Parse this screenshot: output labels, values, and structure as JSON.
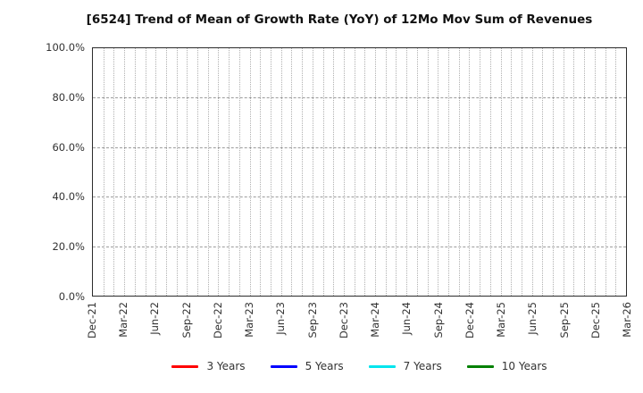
{
  "title": "[6524]  Trend of Mean of Growth Rate (YoY) of 12Mo Mov Sum of Revenues",
  "colors": {
    "axis_border": "#2b2b2b",
    "grid_vertical": "#b0b0b0",
    "grid_horizontal": "#9c9c9c",
    "tick_text": "#333333",
    "title_text": "#111111"
  },
  "chart_data": {
    "type": "line",
    "title": "[6524]  Trend of Mean of Growth Rate (YoY) of 12Mo Mov Sum of Revenues",
    "xlabel": "",
    "ylabel": "",
    "x_tick_labels": [
      "Dec-21",
      "Mar-22",
      "Jun-22",
      "Sep-22",
      "Dec-22",
      "Mar-23",
      "Jun-23",
      "Sep-23",
      "Dec-23",
      "Mar-24",
      "Jun-24",
      "Sep-24",
      "Dec-24",
      "Mar-25",
      "Jun-25",
      "Sep-25",
      "Dec-25",
      "Mar-26"
    ],
    "months_per_tick": 3,
    "y_tick_labels_top_to_bottom": [
      "100.0%",
      "80.0%",
      "60.0%",
      "40.0%",
      "20.0%",
      "0.0%"
    ],
    "y_ticks": [
      0,
      20,
      40,
      60,
      80,
      100
    ],
    "ylim": [
      0,
      100
    ],
    "grid": true,
    "legend_position": "bottom-center",
    "series": [
      {
        "name": "3 Years",
        "color": "#ff0000",
        "values": []
      },
      {
        "name": "5 Years",
        "color": "#0000ff",
        "values": []
      },
      {
        "name": "7 Years",
        "color": "#00e5ee",
        "values": []
      },
      {
        "name": "10 Years",
        "color": "#008000",
        "values": []
      }
    ]
  }
}
